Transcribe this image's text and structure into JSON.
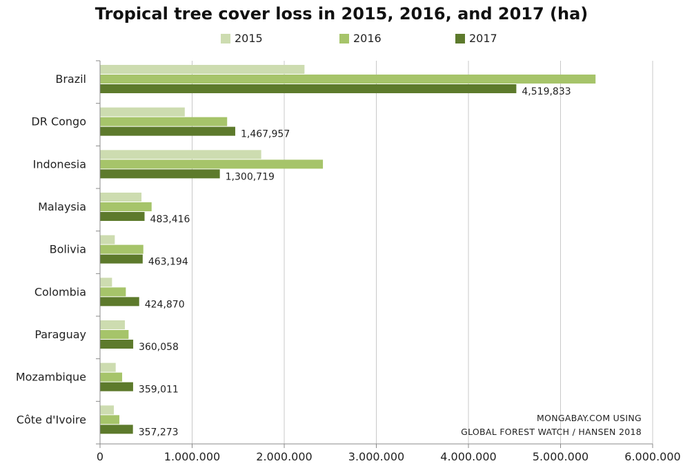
{
  "chart_data": {
    "type": "bar",
    "orientation": "horizontal",
    "title": "Tropical tree cover loss in 2015, 2016, and 2017 (ha)",
    "categories": [
      "Brazil",
      "DR Congo",
      "Indonesia",
      "Malaysia",
      "Bolivia",
      "Colombia",
      "Paraguay",
      "Mozambique",
      "Côte d'Ivoire"
    ],
    "series": [
      {
        "name": "2015",
        "color": "#cddcb0",
        "values": [
          2220000,
          920000,
          1750000,
          450000,
          160000,
          130000,
          270000,
          170000,
          150000
        ]
      },
      {
        "name": "2016",
        "color": "#a6c46a",
        "values": [
          5380000,
          1380000,
          2420000,
          560000,
          470000,
          280000,
          310000,
          240000,
          210000
        ]
      },
      {
        "name": "2017",
        "color": "#5d7a2c",
        "values": [
          4519833,
          1467957,
          1300719,
          483416,
          463194,
          424870,
          360058,
          359011,
          357273
        ]
      }
    ],
    "data_labels": [
      "4,519,833",
      "1,467,957",
      "1,300,719",
      "483,416",
      "463,194",
      "424,870",
      "360,058",
      "359,011",
      "357,273"
    ],
    "xlim": [
      0,
      6000000
    ],
    "x_ticks": [
      0,
      1000000,
      2000000,
      3000000,
      4000000,
      5000000,
      6000000
    ],
    "x_tick_labels": [
      "0",
      "1.000.000",
      "2.000.000",
      "3.000.000",
      "4.000.000",
      "5.000.000",
      "6.000.000"
    ],
    "grid": true,
    "legend_position": "top"
  },
  "source": {
    "line1": "MONGABAY.COM USING",
    "line2": "GLOBAL FOREST WATCH / HANSEN 2018"
  }
}
